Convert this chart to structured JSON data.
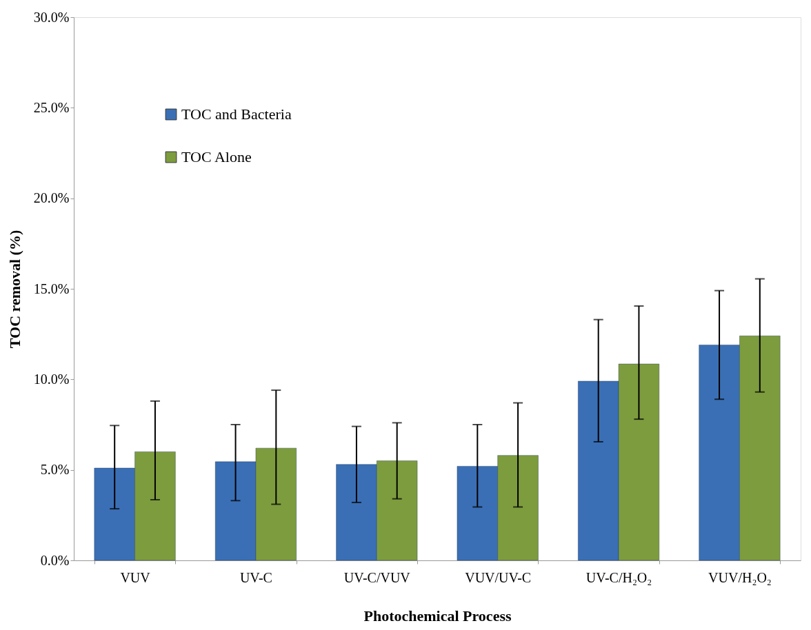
{
  "chart_data": {
    "type": "bar",
    "xlabel": "Photochemical Process",
    "ylabel": "TOC removal (%)",
    "categories": [
      "VUV",
      "UV-C",
      "UV-C/VUV",
      "VUV/UV-C",
      "UV-C/H₂O₂",
      "VUV/H₂O₂"
    ],
    "series": [
      {
        "name": "TOC and Bacteria",
        "color": "#3a6fb5",
        "values": [
          5.1,
          5.45,
          5.3,
          5.2,
          9.9,
          11.9
        ],
        "errors": [
          [
            2.85,
            7.45
          ],
          [
            3.3,
            7.5
          ],
          [
            3.2,
            7.4
          ],
          [
            2.95,
            7.5
          ],
          [
            6.55,
            13.3
          ],
          [
            8.9,
            14.9
          ]
        ]
      },
      {
        "name": "TOC Alone",
        "color": "#7d9c3e",
        "values": [
          6.0,
          6.2,
          5.5,
          5.8,
          10.85,
          12.4
        ],
        "errors": [
          [
            3.35,
            8.8
          ],
          [
            3.1,
            9.4
          ],
          [
            3.4,
            7.6
          ],
          [
            2.95,
            8.7
          ],
          [
            7.8,
            14.05
          ],
          [
            9.3,
            15.55
          ]
        ]
      }
    ],
    "ylim": [
      0,
      30
    ],
    "yticks": [
      {
        "value": 0,
        "label": "0.0%"
      },
      {
        "value": 5,
        "label": "5.0%"
      },
      {
        "value": 10,
        "label": "10.0%"
      },
      {
        "value": 15,
        "label": "15.0%"
      },
      {
        "value": 20,
        "label": "20.0%"
      },
      {
        "value": 25,
        "label": "25.0%"
      },
      {
        "value": 30,
        "label": "30.0%"
      }
    ],
    "grid": false,
    "legend": "top left"
  }
}
